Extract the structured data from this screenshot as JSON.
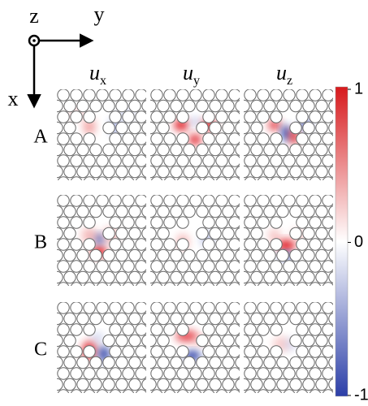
{
  "axes": {
    "z": "z",
    "y": "y",
    "x": "x"
  },
  "columns": [
    {
      "symbol": "u",
      "subscript": "x"
    },
    {
      "symbol": "u",
      "subscript": "y"
    },
    {
      "symbol": "u",
      "subscript": "z"
    }
  ],
  "rows": [
    "A",
    "B",
    "C"
  ],
  "colorbar": {
    "ticks": [
      1,
      0,
      -1
    ]
  }
}
